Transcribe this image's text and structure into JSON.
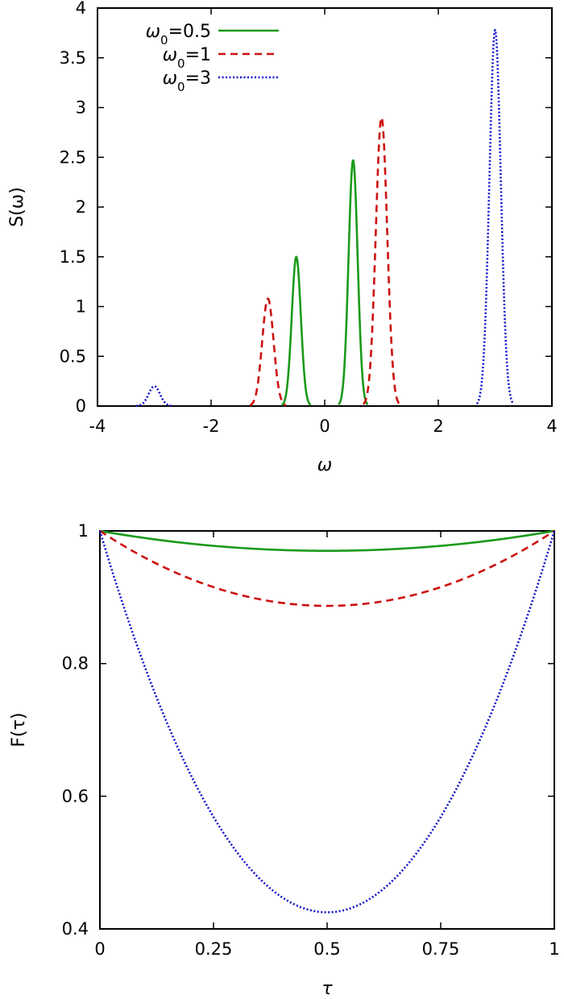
{
  "chart_data": [
    {
      "type": "line",
      "xlabel": "ω",
      "ylabel": "S(ω)",
      "xlim": [
        -4,
        4
      ],
      "ylim": [
        0,
        4
      ],
      "xticks": [
        -4,
        -2,
        0,
        2,
        4
      ],
      "xtick_labels": [
        "-4",
        "-2",
        "0",
        "2",
        "4"
      ],
      "yticks": [
        0,
        0.5,
        1,
        1.5,
        2,
        2.5,
        3,
        3.5,
        4
      ],
      "ytick_labels": [
        "0",
        "0.5",
        "1",
        "1.5",
        "2",
        "2.5",
        "3",
        "3.5",
        "4"
      ],
      "grid": false,
      "legend": "top-left",
      "series": [
        {
          "name_main": "ω",
          "name_sub": "0",
          "name_rest": "=0.5",
          "color": "#1a9a1a",
          "dash": "solid",
          "peaks": [
            {
              "center": -0.5,
              "height": 1.5,
              "width": 0.08
            },
            {
              "center": 0.5,
              "height": 2.47,
              "width": 0.08
            }
          ]
        },
        {
          "name_main": "ω",
          "name_sub": "0",
          "name_rest": "=1",
          "color": "#cc1111",
          "dash": "dashed",
          "peaks": [
            {
              "center": -1.0,
              "height": 1.08,
              "width": 0.1
            },
            {
              "center": 1.0,
              "height": 2.9,
              "width": 0.1
            }
          ]
        },
        {
          "name_main": "ω",
          "name_sub": "0",
          "name_rest": "=3",
          "color": "#1111cc",
          "dash": "dotted",
          "peaks": [
            {
              "center": -3.0,
              "height": 0.2,
              "width": 0.1
            },
            {
              "center": 3.0,
              "height": 3.78,
              "width": 0.1
            }
          ]
        }
      ]
    },
    {
      "type": "line",
      "xlabel": "τ",
      "ylabel": "F(τ)",
      "xlim": [
        0,
        1
      ],
      "ylim": [
        0.4,
        1
      ],
      "xticks": [
        0,
        0.25,
        0.5,
        0.75,
        1
      ],
      "xtick_labels": [
        "0",
        "0.25",
        "0.5",
        "0.75",
        "1"
      ],
      "yticks": [
        0.4,
        0.6,
        0.8,
        1
      ],
      "ytick_labels": [
        "0.4",
        "0.6",
        "0.8",
        "1"
      ],
      "grid": false,
      "series": [
        {
          "color": "#1a9a1a",
          "dash": "solid",
          "x": [
            0,
            0.5,
            1
          ],
          "y": [
            1.0,
            0.97,
            1.0
          ]
        },
        {
          "color": "#cc1111",
          "dash": "dashed",
          "x": [
            0,
            0.5,
            1
          ],
          "y": [
            1.0,
            0.887,
            1.0
          ]
        },
        {
          "color": "#1111cc",
          "dash": "dotted",
          "x": [
            0,
            0.5,
            1
          ],
          "y": [
            1.0,
            0.425,
            1.0
          ]
        }
      ]
    }
  ]
}
